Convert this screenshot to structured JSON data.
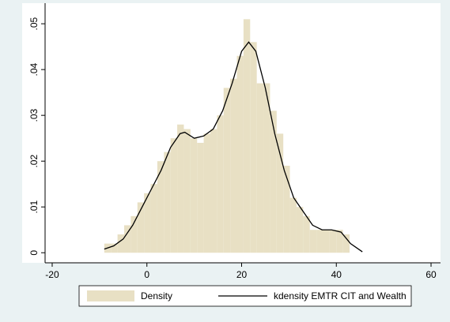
{
  "chart_data": {
    "type": "histogram",
    "name": "Density",
    "color": "#e8e0c4",
    "bins": [
      -9,
      -7.6,
      -6.2,
      -4.8,
      -3.4,
      -2,
      -0.6,
      0.8,
      2.2,
      3.6,
      5,
      6.4,
      7.8,
      9.2,
      10.6,
      12,
      13.4,
      14.8,
      16.2,
      17.6,
      19,
      20.4,
      21.8,
      23.2,
      24.6,
      26,
      27.4,
      28.8,
      30.2,
      31.6,
      33,
      34.4,
      35.8,
      37.2,
      38.6,
      40,
      41.4,
      42.8
    ],
    "values": [
      0.002,
      0.002,
      0.004,
      0.006,
      0.008,
      0.011,
      0.013,
      0.015,
      0.02,
      0.022,
      0.025,
      0.028,
      0.027,
      0.025,
      0.024,
      0.026,
      0.027,
      0.03,
      0.036,
      0.038,
      0.043,
      0.051,
      0.046,
      0.037,
      0.037,
      0.031,
      0.026,
      0.019,
      0.012,
      0.01,
      0.008,
      0.005,
      0.005,
      0.005,
      0.005,
      0.005,
      0.004
    ],
    "line": {
      "name": "kdensity EMTR CIT and Wealth",
      "color": "#000000",
      "x": [
        -9,
        -7,
        -5,
        -3,
        -1,
        1,
        3,
        5,
        7,
        8,
        10,
        12,
        14,
        16,
        18,
        20,
        21.5,
        23,
        25,
        27,
        29,
        31,
        33,
        35,
        37,
        39,
        41,
        43,
        45.5
      ],
      "y": [
        0.0008,
        0.0015,
        0.003,
        0.006,
        0.01,
        0.014,
        0.018,
        0.023,
        0.026,
        0.0263,
        0.025,
        0.0255,
        0.027,
        0.031,
        0.037,
        0.044,
        0.046,
        0.044,
        0.036,
        0.026,
        0.018,
        0.012,
        0.009,
        0.006,
        0.005,
        0.005,
        0.0045,
        0.002,
        0.0002
      ]
    },
    "xlim": [
      -21.5,
      62
    ],
    "ylim": [
      -0.0022,
      0.0545
    ],
    "xticks": [
      -20,
      0,
      20,
      40,
      60
    ],
    "yticks": [
      0,
      {
        "value": 0.01,
        "label": ".01"
      },
      {
        "value": 0.02,
        "label": ".02"
      },
      {
        "value": 0.03,
        "label": ".03"
      },
      {
        "value": 0.04,
        "label": ".04"
      },
      {
        "value": 0.05,
        "label": ".05"
      }
    ],
    "grid": false
  }
}
